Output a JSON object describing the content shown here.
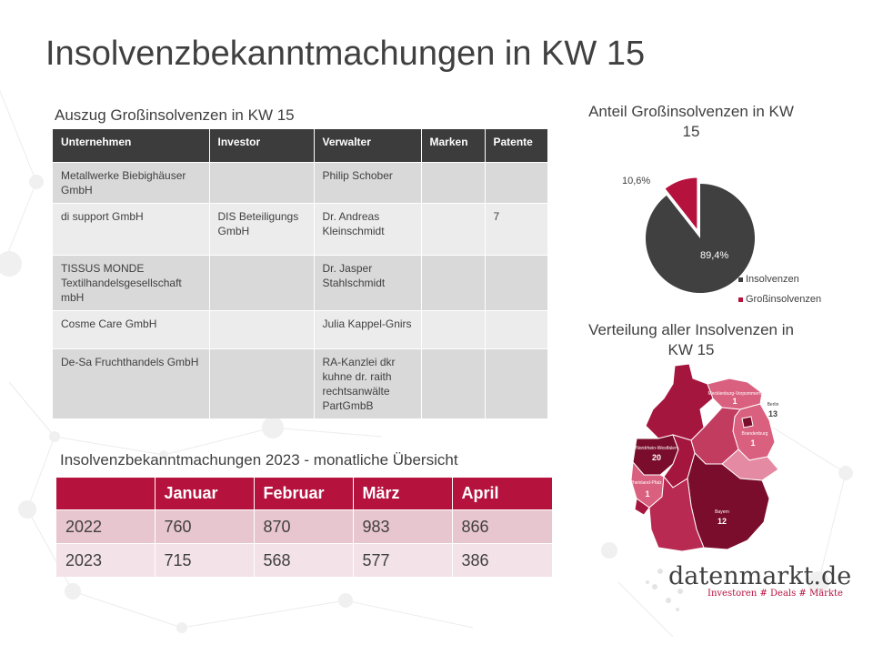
{
  "title": "Insolvenzbekanntmachungen in KW 15",
  "table1": {
    "heading": "Auszug Großinsolvenzen in KW 15",
    "columns": [
      "Unternehmen",
      "Investor",
      "Verwalter",
      "Marken",
      "Patente"
    ],
    "rows": [
      [
        "Metallwerke Biebighäuser GmbH",
        "",
        "Philip Schober",
        "",
        ""
      ],
      [
        "di support GmbH",
        "DIS Beteiligungs GmbH",
        "Dr. Andreas Kleinschmidt",
        "",
        "7"
      ],
      [
        "TISSUS MONDE Textilhandelsgesellschaft mbH",
        "",
        "Dr. Jasper Stahlschmidt",
        "",
        ""
      ],
      [
        "Cosme Care GmbH",
        "",
        "Julia Kappel-Gnirs",
        "",
        ""
      ],
      [
        "De-Sa Fruchthandels GmbH",
        "",
        "RA-Kanzlei dkr kuhne dr. raith rechtsanwälte PartGmbB",
        "",
        ""
      ]
    ]
  },
  "table2": {
    "heading": "Insolvenzbekanntmachungen 2023 - monatliche Übersicht",
    "columns": [
      "",
      "Januar",
      "Februar",
      "März",
      "April"
    ],
    "rows": [
      [
        "2022",
        "760",
        "870",
        "983",
        "866"
      ],
      [
        "2023",
        "715",
        "568",
        "577",
        "386"
      ]
    ]
  },
  "chart_data": {
    "type": "pie",
    "title": "Anteil Großinsolvenzen in KW 15",
    "labels": [
      "Insolvenzen",
      "Großinsolvenzen"
    ],
    "values": [
      89.4,
      10.6
    ],
    "value_labels": [
      "89,4%",
      "10,6%"
    ],
    "colors": [
      "#404040",
      "#b5123e"
    ],
    "legend_position": "bottom-right"
  },
  "map": {
    "title": "Verteilung aller Insolvenzen in KW 15",
    "regions": [
      {
        "name": "Mecklenburg-Vorpommern",
        "value": "1"
      },
      {
        "name": "Berlin",
        "value": "13"
      },
      {
        "name": "Brandenburg",
        "value": "1"
      },
      {
        "name": "Nordrhein-Westfalen",
        "value": "20"
      },
      {
        "name": "Rheinland-Pfalz",
        "value": "1"
      },
      {
        "name": "Bayern",
        "value": "12"
      }
    ]
  },
  "logo": {
    "name": "datenmarkt.de",
    "tagline": "Investoren # Deals # Märkte"
  }
}
